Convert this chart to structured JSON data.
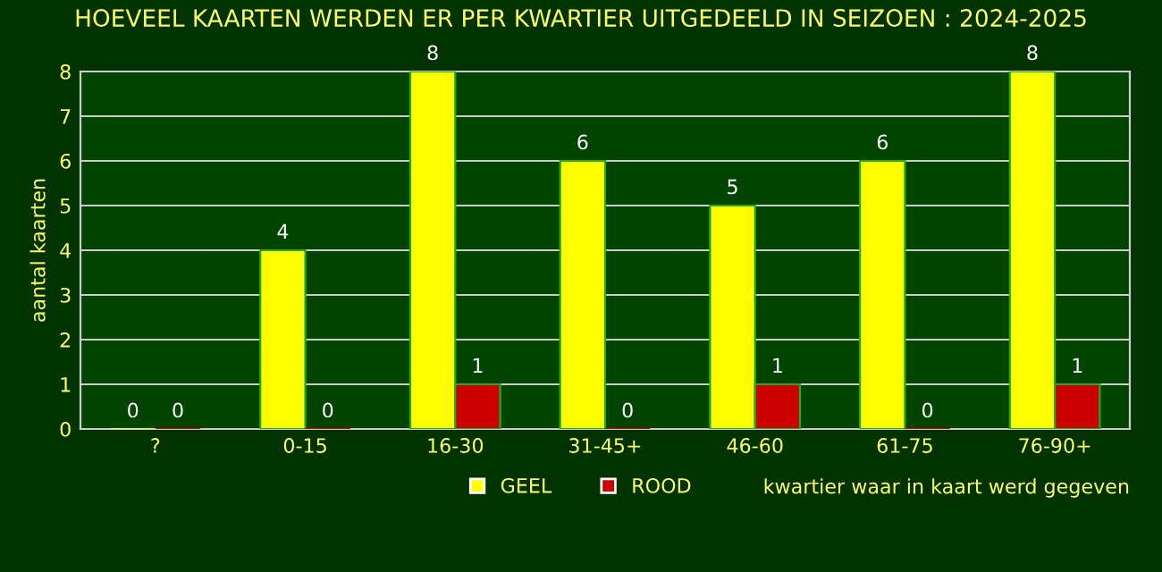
{
  "chart_data": {
    "type": "bar",
    "title": "HOEVEEL KAARTEN WERDEN ER PER KWARTIER UITGEDEELD IN SEIZOEN : 2024-2025",
    "categories": [
      "?",
      "0-15",
      "16-30",
      "31-45+",
      "46-60",
      "61-75",
      "76-90+"
    ],
    "series": [
      {
        "name": "GEEL",
        "color": "#ffff00",
        "values": [
          0,
          4,
          8,
          6,
          5,
          6,
          8
        ]
      },
      {
        "name": "ROOD",
        "color": "#cc0000",
        "values": [
          0,
          0,
          1,
          0,
          1,
          0,
          1
        ]
      }
    ],
    "ylabel": "aantal kaarten",
    "xlabel": "kwartier waar in kaart werd gegeven",
    "ylim": [
      0,
      8
    ],
    "yticks": [
      0,
      1,
      2,
      3,
      4,
      5,
      6,
      7,
      8
    ],
    "grid": "y",
    "legend": "bottom",
    "data_labels": true
  }
}
